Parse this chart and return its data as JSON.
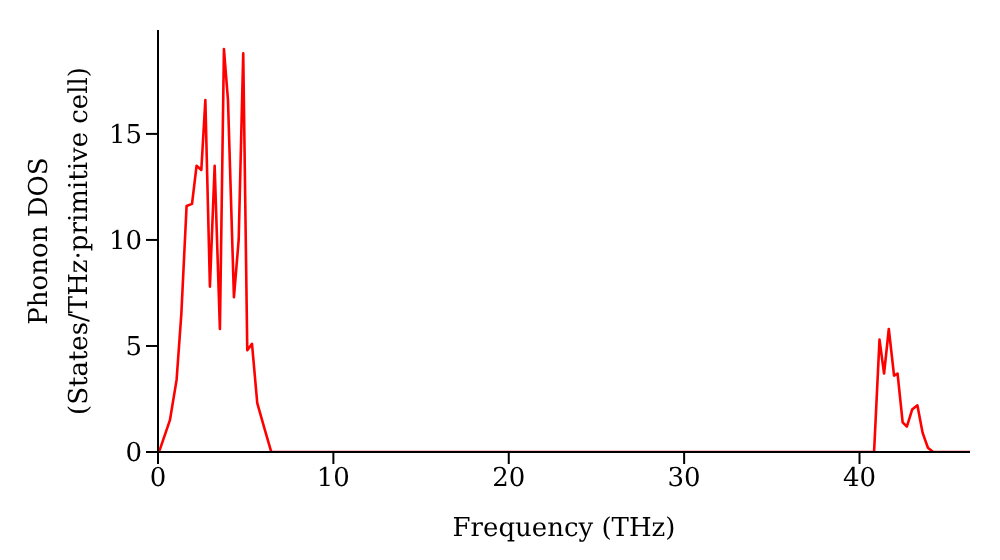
{
  "chart_data": {
    "type": "line",
    "xlabel": "Frequency (THz)",
    "ylabel": "Phonon DOS\n(States/THz·primitive cell)",
    "x": [
      0,
      0.1,
      0.68,
      1.06,
      1.33,
      1.63,
      1.94,
      2.2,
      2.47,
      2.7,
      2.96,
      3.23,
      3.53,
      3.76,
      3.99,
      4.33,
      4.6,
      4.86,
      5.09,
      5.36,
      5.66,
      6.04,
      6.46,
      10,
      20,
      30,
      40,
      40.83,
      41.14,
      41.4,
      41.67,
      41.97,
      42.17,
      42.46,
      42.7,
      43.0,
      43.3,
      43.6,
      43.9,
      44.2,
      46.3
    ],
    "series": [
      {
        "color": "#ff0000",
        "values": [
          0,
          0.1,
          1.5,
          3.4,
          6.5,
          11.6,
          11.7,
          13.5,
          13.3,
          16.6,
          7.8,
          13.5,
          5.8,
          19.0,
          16.6,
          7.3,
          10,
          18.8,
          4.8,
          5.1,
          2.3,
          1.2,
          0,
          0,
          0,
          0,
          0,
          0,
          5.3,
          3.7,
          5.8,
          3.6,
          3.7,
          1.4,
          1.2,
          2.0,
          2.2,
          0.9,
          0.2,
          0,
          0
        ]
      }
    ],
    "xlim": [
      0,
      46.3
    ],
    "xticks": [
      0,
      10,
      20,
      30,
      40
    ],
    "ylim": [
      0,
      19.9
    ],
    "yticks": [
      0,
      5,
      10,
      15
    ],
    "marker": "none",
    "line_style": "solid"
  }
}
